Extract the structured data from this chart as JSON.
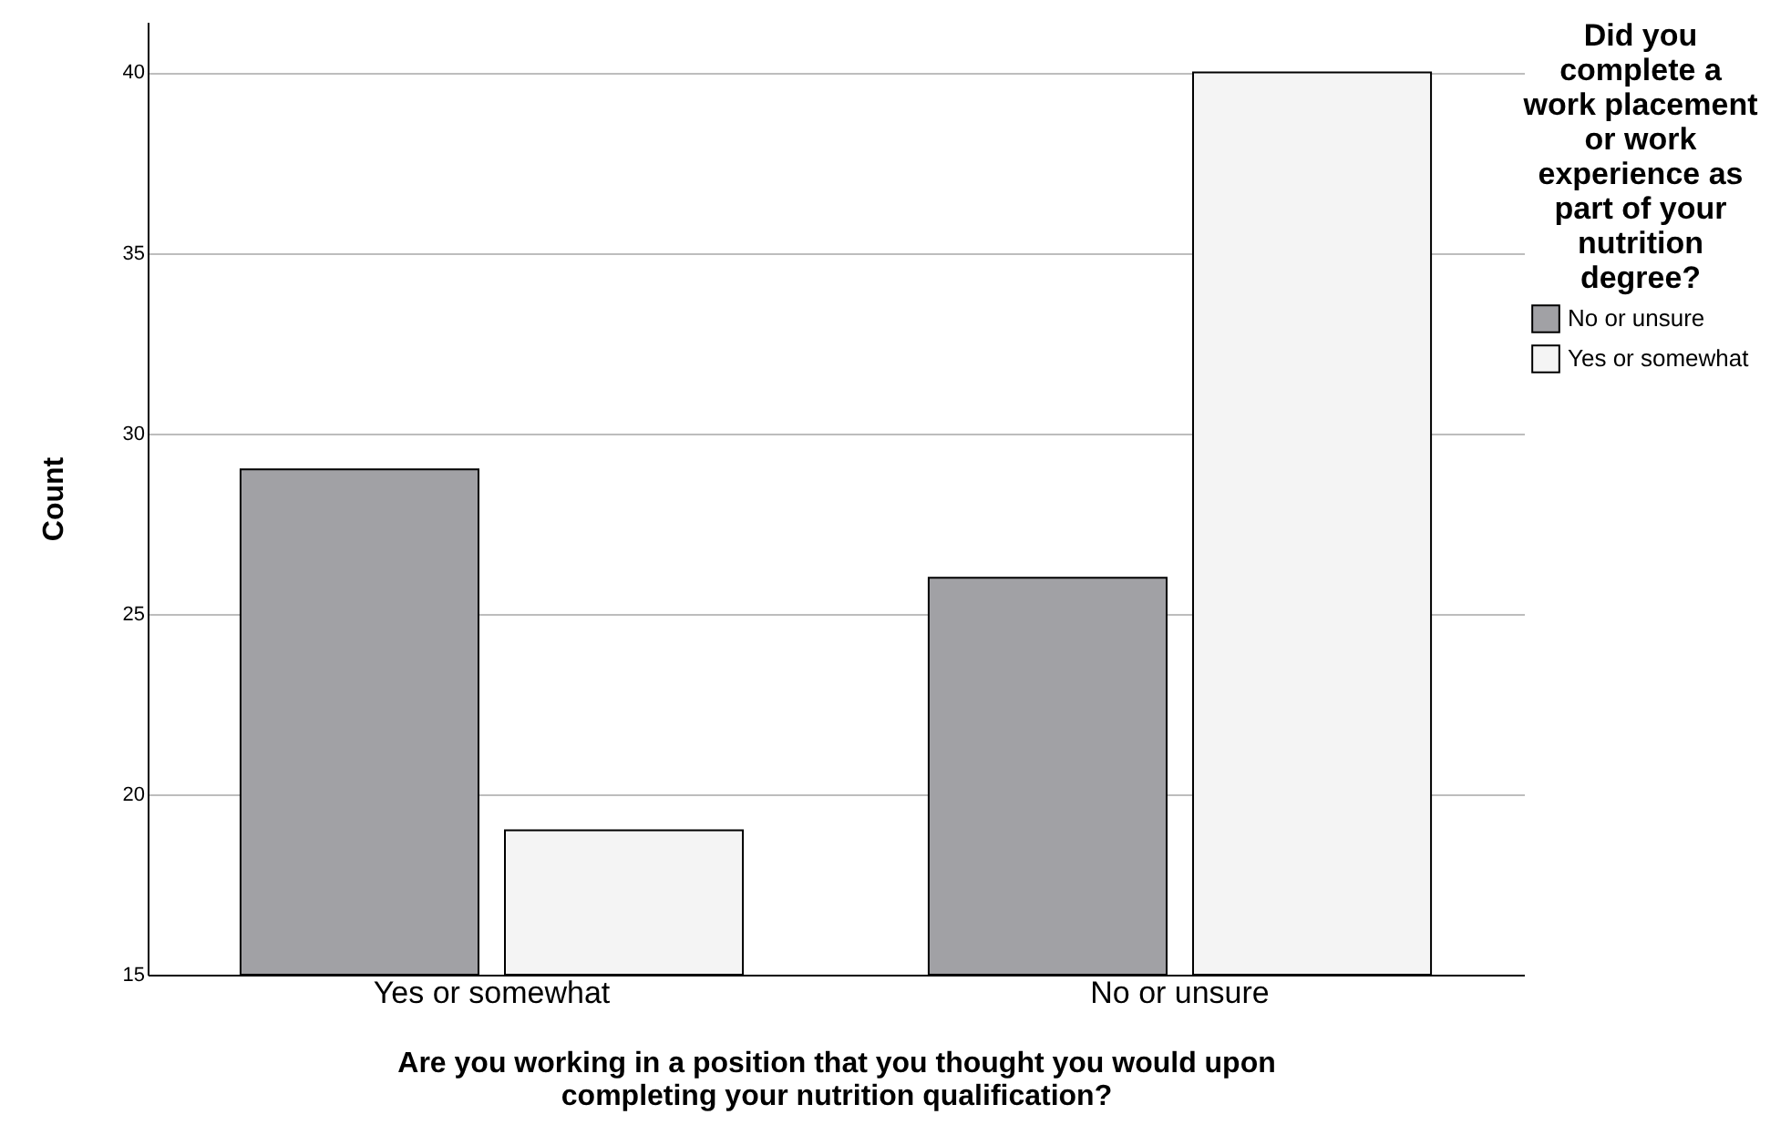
{
  "chart_data": {
    "type": "bar",
    "xlabel": "Are you working in a position that you thought you would upon completing your nutrition qualification?",
    "ylabel": "Count",
    "legend_title": "Did you complete a work placement or work experience as part of your nutrition degree?",
    "categories": [
      "Yes or somewhat",
      "No or unsure"
    ],
    "series": [
      {
        "name": "No or unsure",
        "color": "#a1a1a5",
        "values": [
          29,
          26
        ]
      },
      {
        "name": "Yes or somewhat",
        "color": "#f4f4f4",
        "values": [
          19,
          40
        ]
      }
    ],
    "ylim": [
      15,
      41.4
    ],
    "yticks": [
      15,
      20,
      25,
      30,
      35,
      40
    ],
    "grid": "y",
    "legend": "top right"
  }
}
